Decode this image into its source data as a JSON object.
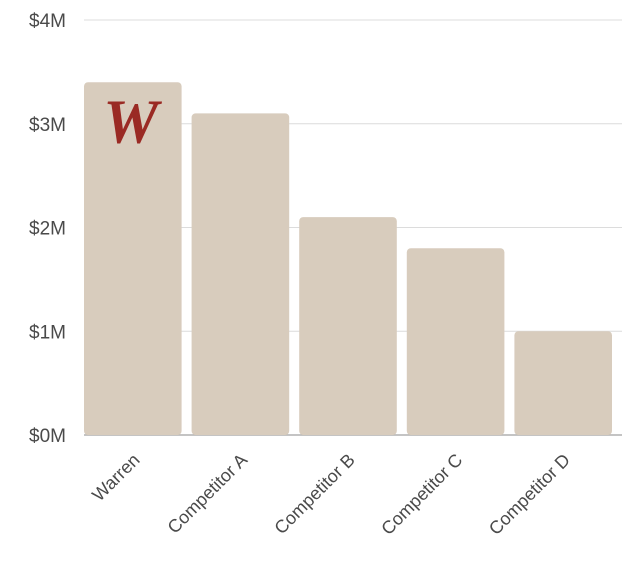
{
  "chart_data": {
    "type": "bar",
    "categories": [
      "Warren",
      "Competitor A",
      "Competitor B",
      "Competitor C",
      "Competitor D"
    ],
    "values": [
      3.4,
      3.1,
      2.1,
      1.8,
      1.0
    ],
    "unit": "M",
    "ylim": [
      0,
      4
    ],
    "yticks": [
      0,
      1,
      2,
      3,
      4
    ],
    "ytick_labels": [
      "$0M",
      "$1M",
      "$2M",
      "$3M",
      "$4M"
    ],
    "title": "",
    "xlabel": "",
    "ylabel": "",
    "grid": true,
    "legend": "none",
    "highlight": {
      "category": "Warren",
      "logo_text": "W",
      "logo_color": "#9a2a24"
    }
  },
  "colors": {
    "bar": "#d8ccbd",
    "grid": "#dcdcdc",
    "axis": "#b0b0b0",
    "text": "#4a4a4a"
  }
}
